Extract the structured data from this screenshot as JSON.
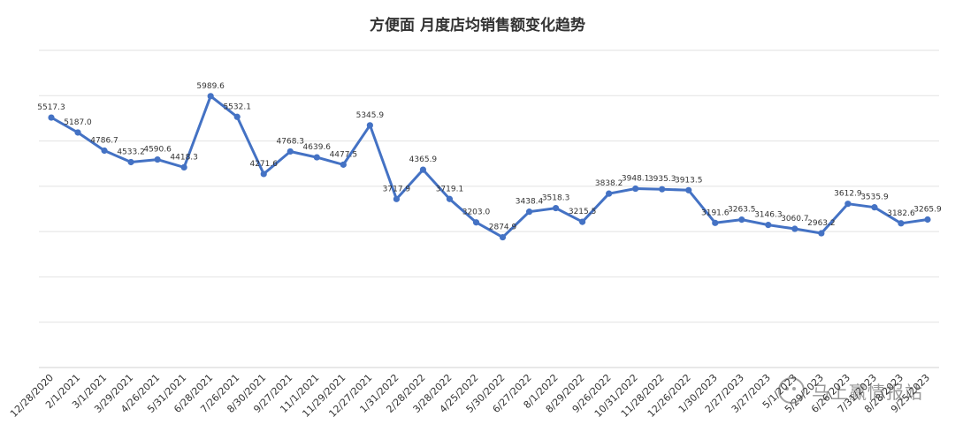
{
  "chart_data": {
    "type": "line",
    "title": "方便面 月度店均销售额变化趋势",
    "xlabel": "",
    "ylabel": "",
    "ylim": [
      0,
      7000
    ],
    "grid": true,
    "legend": "none",
    "color": "#4472C4",
    "categories": [
      "12/28/2020",
      "2/1/2021",
      "3/1/2021",
      "3/29/2021",
      "4/26/2021",
      "5/31/2021",
      "6/28/2021",
      "7/26/2021",
      "8/30/2021",
      "9/27/2021",
      "11/1/2021",
      "11/29/2021",
      "12/27/2021",
      "1/31/2022",
      "2/28/2022",
      "3/28/2022",
      "4/25/2022",
      "5/30/2022",
      "6/27/2022",
      "8/1/2022",
      "8/29/2022",
      "9/26/2022",
      "10/31/2022",
      "11/28/2022",
      "12/26/2022",
      "1/30/2023",
      "2/27/2023",
      "3/27/2023",
      "5/1/2023",
      "5/29/2023",
      "6/26/2023",
      "7/31/2023",
      "8/28/2023",
      "9/25/2023"
    ],
    "series": [
      {
        "values": [
          5517.3,
          5187.0,
          4786.7,
          4533.2,
          4590.6,
          4418.3,
          5989.6,
          5532.1,
          4271.6,
          4768.3,
          4639.6,
          4477.5,
          5345.9,
          3717.9,
          4365.9,
          3719.1,
          3203.0,
          2874.9,
          3438.4,
          3518.3,
          3215.5,
          3838.2,
          3948.1,
          3935.3,
          3913.5,
          3191.6,
          3263.5,
          3146.3,
          3060.7,
          2963.2,
          3612.9,
          3535.9,
          3182.6,
          3265.9
        ]
      }
    ],
    "data_labels": [
      "5517.3",
      "5187.0",
      "4786.7",
      "4533.2",
      "4590.6",
      "4418.3",
      "5989.6",
      "5532.1",
      "4271.6",
      "4768.3",
      "4639.6",
      "4477.5",
      "5345.9",
      "3717.9",
      "4365.9",
      "3719.1",
      "3203.0",
      "2874.9",
      "3438.4",
      "3518.3",
      "3215.5",
      "3838.2",
      "3948.1",
      "3935.3",
      "3913.5",
      "3191.6",
      "3263.5",
      "3146.3",
      "3060.7",
      "2963.2",
      "3612.9",
      "3535.9",
      "3182.6",
      "3265.9"
    ]
  },
  "watermark": {
    "text": "马上赢情报站",
    "icon": "wechat-icon"
  }
}
